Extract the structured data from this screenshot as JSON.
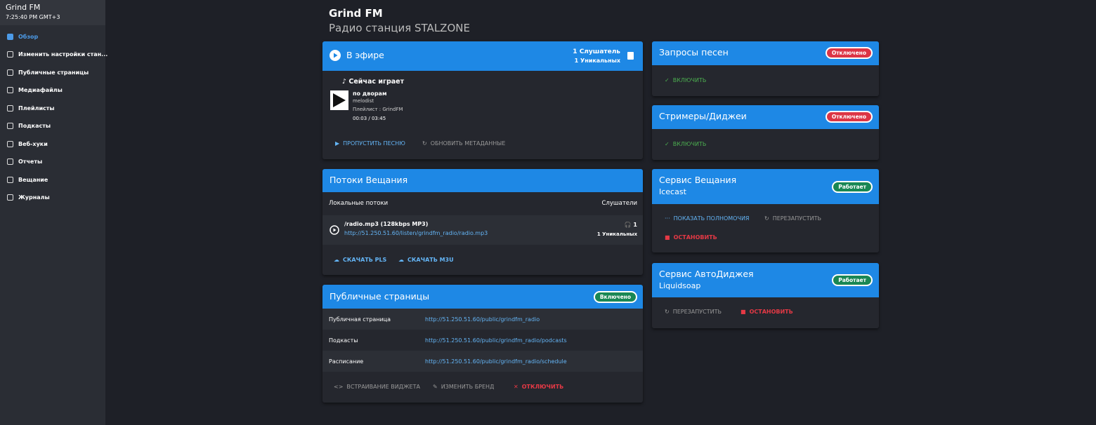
{
  "sidebar": {
    "station": "Grind FM",
    "time": "7:25:40 PM GMT+3",
    "menu": [
      "Обзор",
      "Изменить настройки стан...",
      "Публичные страницы",
      "Медиафайлы",
      "Плейлисты",
      "Подкасты",
      "Веб-хуки",
      "Отчеты",
      "Вещание",
      "Журналы"
    ]
  },
  "header": {
    "title": "Grind FM",
    "subtitle": "Радио станция STALZONE"
  },
  "on_air": {
    "title": "В эфире",
    "listeners": "1 Слушатель",
    "unique": "1 Уникальных",
    "now_playing": "Сейчас играет",
    "song": "по дворам",
    "artist": "melodist",
    "playlist": "Плейлист : GrindFM",
    "time": "00:03 / 03:45",
    "actions": [
      "ПРОПУСТИТЬ ПЕСНЮ",
      "ОБНОВИТЬ МЕТАДАННЫЕ"
    ]
  },
  "streams": {
    "title": "Потоки Вещания",
    "col_local": "Локальные потоки",
    "col_listeners": "Слушатели",
    "stream": {
      "name": "/radio.mp3 (128kbps MP3)",
      "url": "http://51.250.51.60/listen/grindfm_radio/radio.mp3",
      "listeners": 1,
      "unique": "1 Уникальных"
    },
    "actions": [
      "СКАЧАТЬ PLS",
      "СКАЧАТЬ M3U"
    ]
  },
  "public_pages": {
    "title": "Публичные страницы",
    "badge": "Включено",
    "rows": [
      [
        "Публичная страница",
        "http://51.250.51.60/public/grindfm_radio"
      ],
      [
        "Подкасты",
        "http://51.250.51.60/public/grindfm_radio/podcasts"
      ],
      [
        "Расписание",
        "http://51.250.51.60/public/grindfm_radio/schedule"
      ]
    ],
    "actions": [
      "ВСТРАИВАНИЕ ВИДЖЕТА",
      "ИЗМЕНИТЬ БРЕНД",
      "ОТКЛЮЧИТЬ"
    ]
  },
  "song_requests": {
    "title": "Запросы песен",
    "badge": "Отключено",
    "action": "ВКЛЮЧИТЬ"
  },
  "streamers": {
    "title": "Стримеры/Диджеи",
    "badge": "Отключено",
    "action": "ВКЛЮЧИТЬ"
  },
  "broadcast_service": {
    "title": "Сервис Вещания",
    "subtitle": "Icecast",
    "badge": "Работает",
    "actions": [
      "ПОКАЗАТЬ ПОЛНОМОЧИЯ",
      "ПЕРЕЗАПУСТИТЬ",
      "ОСТАНОВИТЬ"
    ]
  },
  "autodj": {
    "title": "Сервис АвтоДиджея",
    "subtitle": "Liquidsoap",
    "badge": "Работает",
    "actions": [
      "ПЕРЕЗАПУСТИТЬ",
      "ОСТАНОВИТЬ"
    ]
  }
}
